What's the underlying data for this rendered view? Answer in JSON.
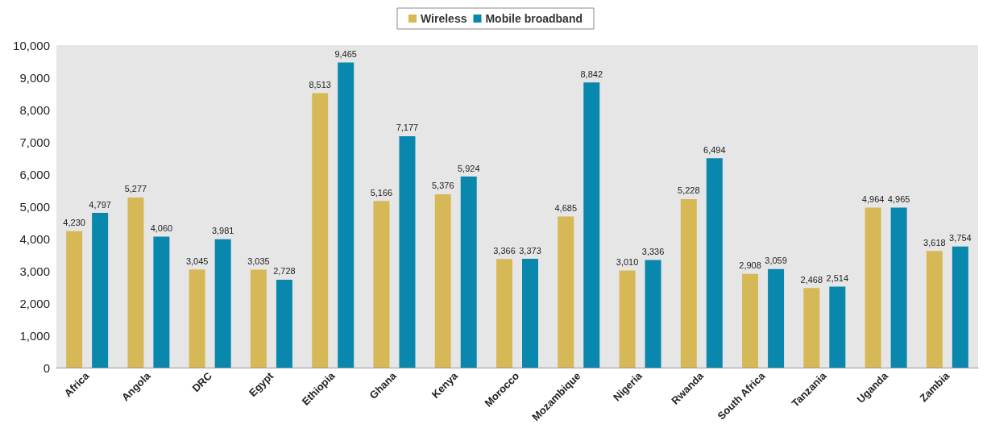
{
  "chart_data": {
    "type": "bar",
    "categories": [
      "Africa",
      "Angola",
      "DRC",
      "Egypt",
      "Ethiopia",
      "Ghana",
      "Kenya",
      "Morocco",
      "Mozambique",
      "Nigeria",
      "Rwanda",
      "South Africa",
      "Tanzania",
      "Uganda",
      "Zambia"
    ],
    "series": [
      {
        "name": "Wireless",
        "color": "#d6b956",
        "values": [
          4230,
          5277,
          3045,
          3035,
          8513,
          5166,
          5376,
          3366,
          4685,
          3010,
          5228,
          2908,
          2468,
          4964,
          3618
        ],
        "value_labels": [
          "4,230",
          "5,277",
          "3,045",
          "3,035",
          "8,513",
          "5,166",
          "5,376",
          "3,366",
          "4,685",
          "3,010",
          "5,228",
          "2,908",
          "2,468",
          "4,964",
          "3,618"
        ]
      },
      {
        "name": "Mobile broadband",
        "color": "#0a87ad",
        "values": [
          4797,
          4060,
          3981,
          2728,
          9465,
          7177,
          5924,
          3373,
          8842,
          3336,
          6494,
          3059,
          2514,
          4965,
          3754
        ],
        "value_labels": [
          "4,797",
          "4,060",
          "3,981",
          "2,728",
          "9,465",
          "7,177",
          "5,924",
          "3,373",
          "8,842",
          "3,336",
          "6,494",
          "3,059",
          "2,514",
          "4,965",
          "3,754"
        ]
      }
    ],
    "ylim": [
      0,
      10000
    ],
    "yticks": [
      0,
      {
        "value": 1000,
        "label": "1,000"
      },
      {
        "value": 2000,
        "label": "2,000"
      },
      {
        "value": 3000,
        "label": "3,000"
      },
      {
        "value": 4000,
        "label": "4,000"
      },
      {
        "value": 5000,
        "label": "5,000"
      },
      {
        "value": 6000,
        "label": "6,000"
      },
      {
        "value": 7000,
        "label": "7,000"
      },
      {
        "value": 8000,
        "label": "8,000"
      },
      {
        "value": 9000,
        "label": "9,000"
      },
      {
        "value": 10000,
        "label": "10,000"
      }
    ],
    "grid": false,
    "legend": "top"
  }
}
